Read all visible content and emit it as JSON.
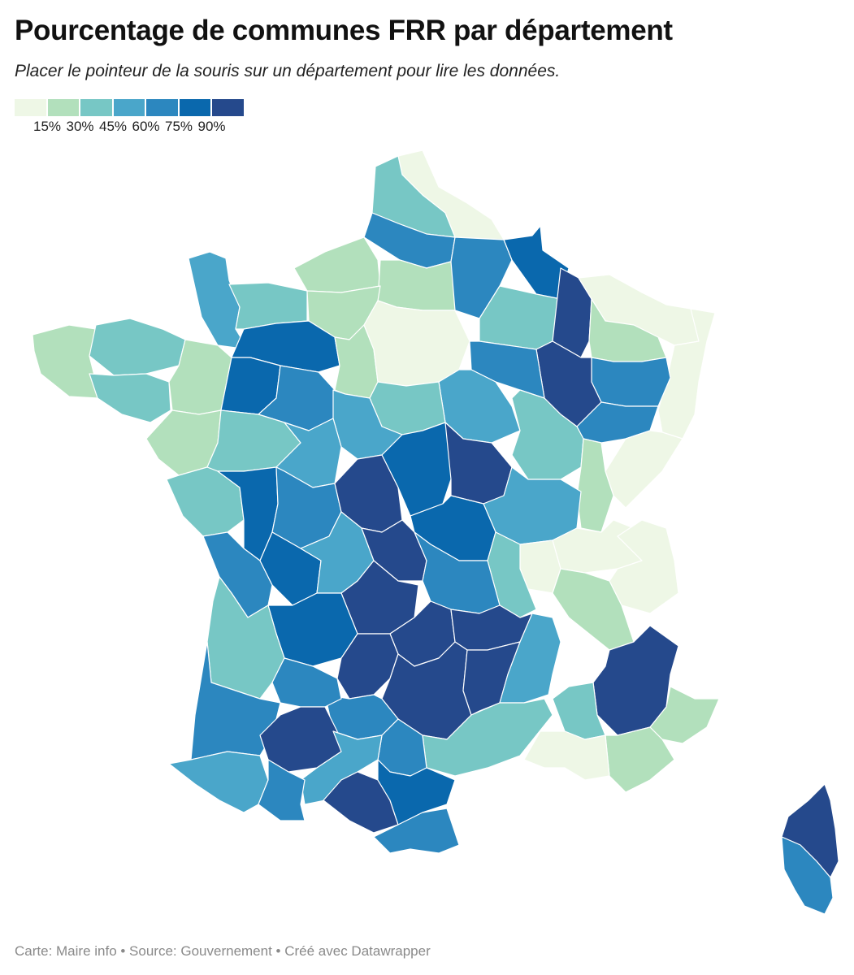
{
  "header": {
    "title": "Pourcentage de communes FRR par département",
    "subtitle": "Placer le pointeur de la souris sur un département pour lire les données."
  },
  "legend": {
    "colors": [
      "#eef7e6",
      "#b2e0bc",
      "#77c7c5",
      "#4aa6ca",
      "#2c87bf",
      "#0a68ad",
      "#25498c"
    ],
    "tick_labels": [
      "15%",
      "30%",
      "45%",
      "60%",
      "75%",
      "90%"
    ]
  },
  "map": {
    "type": "choropleth",
    "region": "France métropolitaine",
    "unit": "département",
    "color_scale": {
      "breaks": [
        15,
        30,
        45,
        60,
        75,
        90
      ],
      "colors": [
        "#eef7e6",
        "#b2e0bc",
        "#77c7c5",
        "#4aa6ca",
        "#2c87bf",
        "#0a68ad",
        "#25498c"
      ]
    }
  },
  "footer": {
    "credit": "Carte: Maire info • Source: Gouvernement • Créé avec Datawrapper"
  }
}
